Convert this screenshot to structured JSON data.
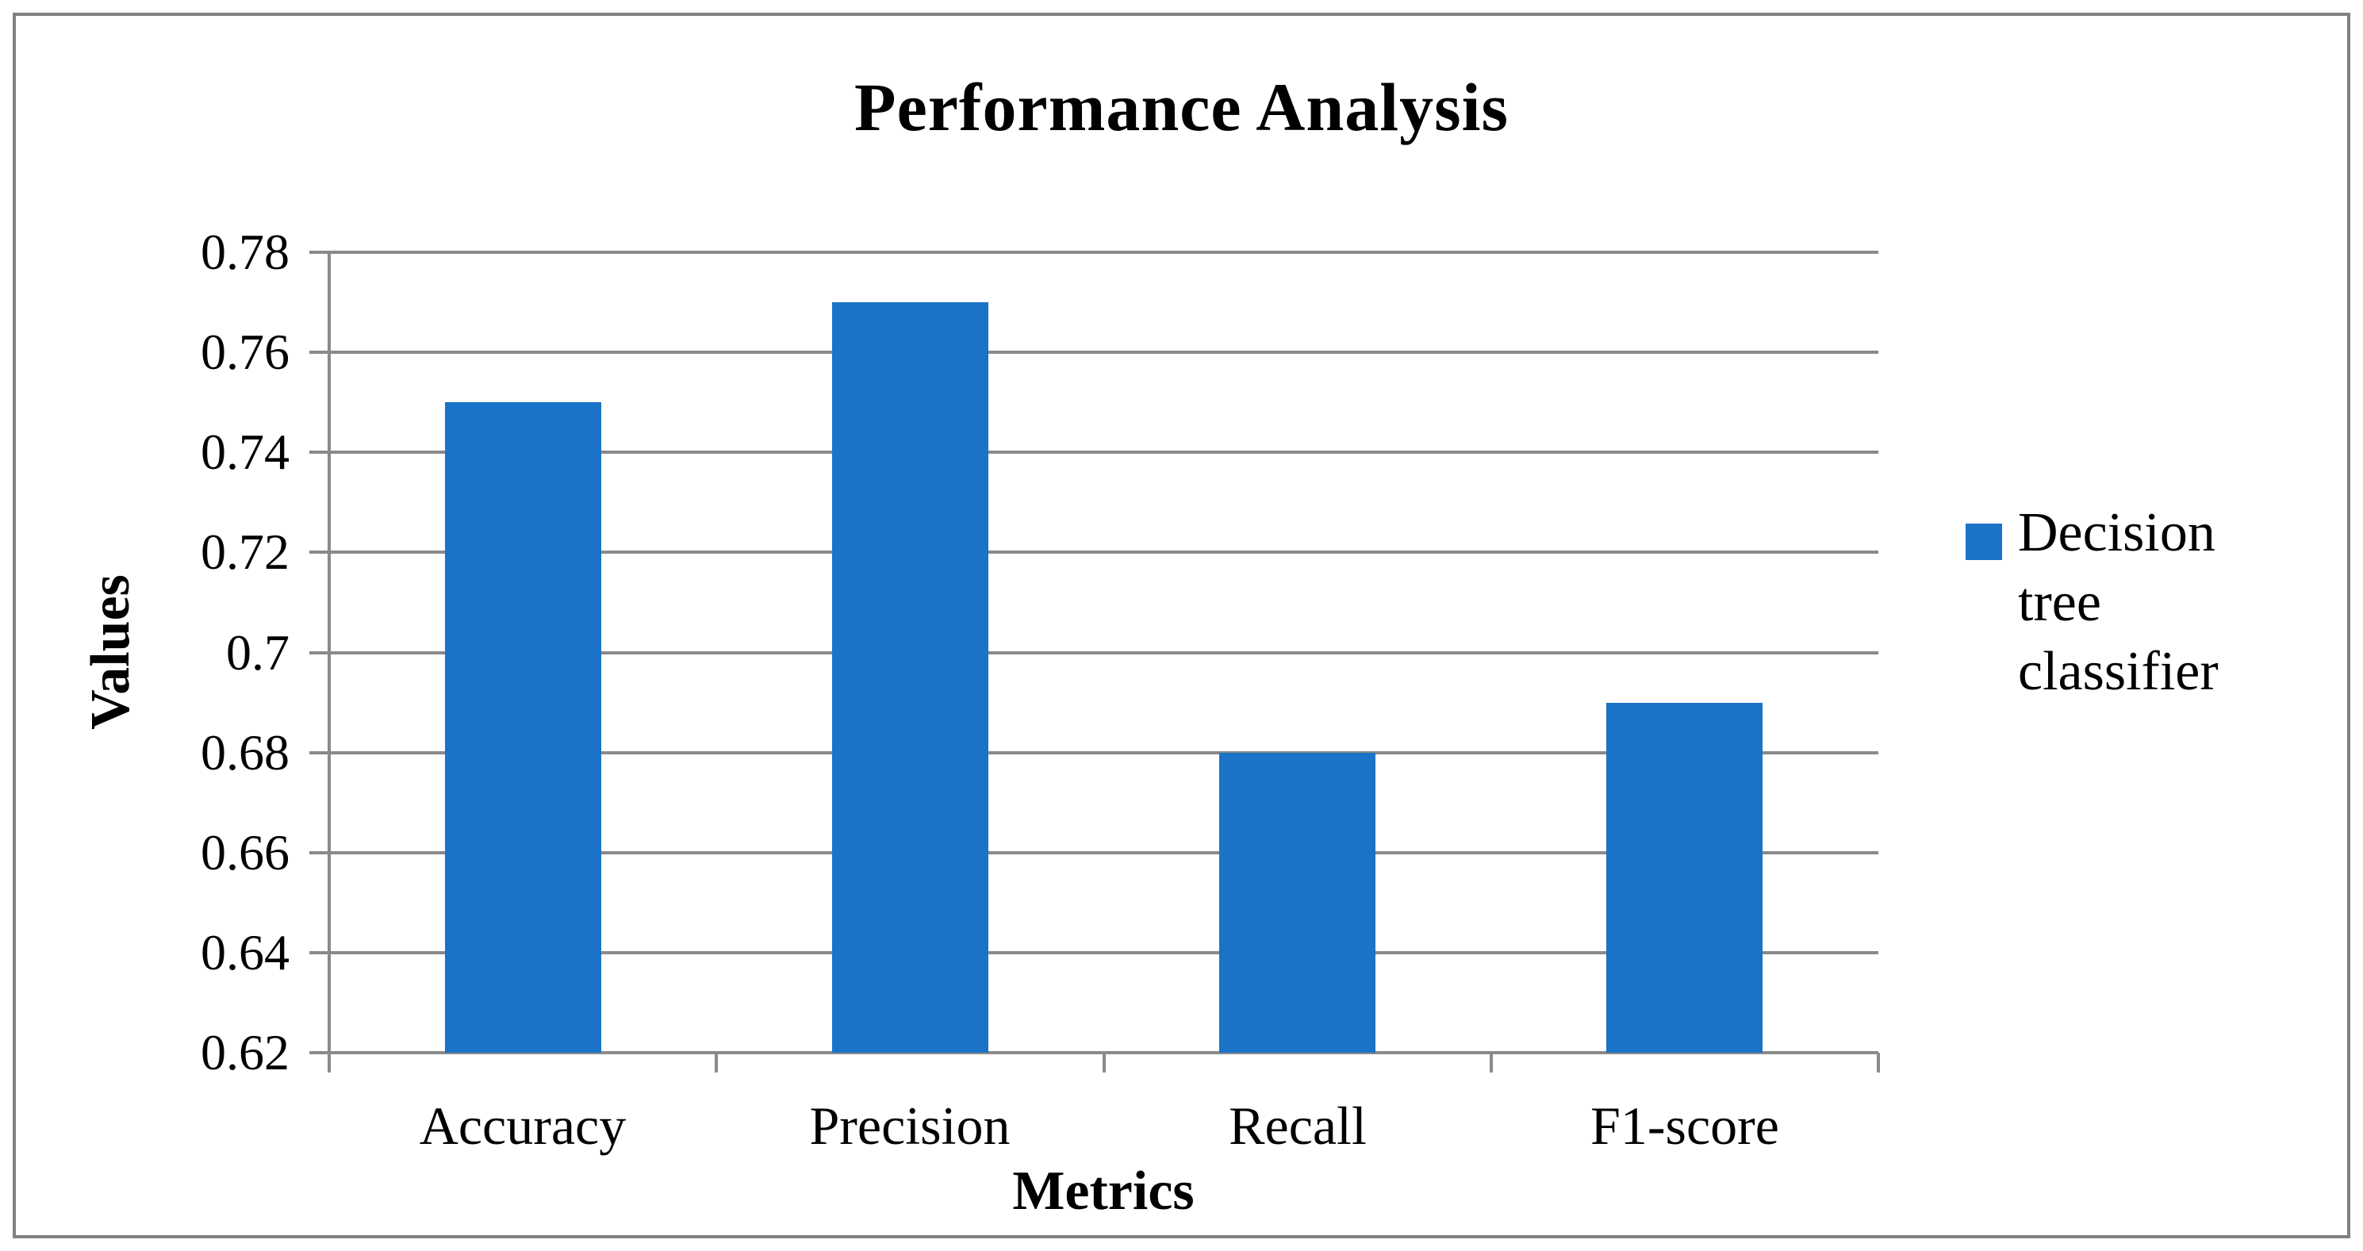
{
  "chart_data": {
    "type": "bar",
    "title": "Performance Analysis",
    "xlabel": "Metrics",
    "ylabel": "Values",
    "categories": [
      "Accuracy",
      "Precision",
      "Recall",
      "F1-score"
    ],
    "series": [
      {
        "name": "Decision tree classifier",
        "values": [
          0.75,
          0.77,
          0.68,
          0.69
        ]
      }
    ],
    "ylim": [
      0.62,
      0.78
    ],
    "ytick_step": 0.02,
    "ytick_labels": [
      "0.78",
      "0.76",
      "0.74",
      "0.72",
      "0.7",
      "0.68",
      "0.66",
      "0.64",
      "0.62"
    ],
    "grid": true,
    "legend_position": "right",
    "colors": {
      "bar": "#1b73c8",
      "grid": "#8a8a8a",
      "axis": "#8a8a8a",
      "border": "#808080",
      "text": "#000000",
      "background": "#ffffff"
    }
  }
}
